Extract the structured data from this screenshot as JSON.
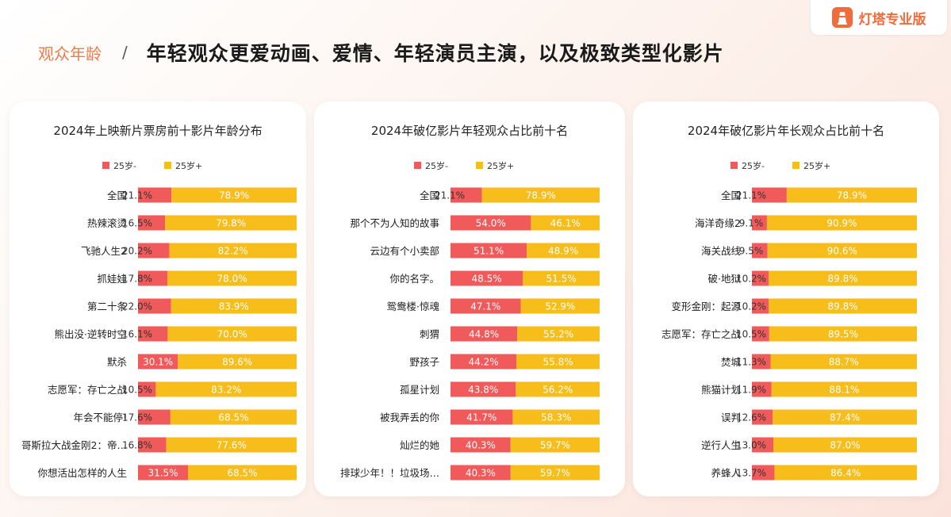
{
  "logo": {
    "text": "灯塔专业版",
    "icon": "lighthouse-icon"
  },
  "header": {
    "section": "观众年龄",
    "separator": "/",
    "headline": "年轻观众更爱动画、爱情、年轻演员主演，以及极致类型化影片"
  },
  "colors": {
    "young": "#f15a5a",
    "old": "#f6bd1b",
    "accent": "#f26b3a"
  },
  "chart_data": [
    {
      "type": "bar",
      "stacked": true,
      "horizontal": true,
      "title": "2024年上映新片票房前十影片年龄分布",
      "legend": {
        "position": "top",
        "items": [
          "25岁-",
          "25岁+"
        ]
      },
      "categories": [
        "全国",
        "热辣滚烫",
        "飞驰人生2",
        "抓娃娃",
        "第二十条",
        "熊出没·逆转时空",
        "默杀",
        "志愿军：存亡之战",
        "年会不能停!",
        "哥斯拉大战金刚2：帝…",
        "你想活出怎样的人生"
      ],
      "series": [
        {
          "name": "25岁-",
          "values": [
            21.1,
            16.5,
            20.2,
            17.8,
            22.0,
            16.1,
            30.1,
            10.5,
            17.6,
            16.8,
            31.5
          ],
          "labels": [
            "21.1%",
            "16.5%",
            "20.2%",
            "17.8%",
            "22.0%",
            "16.1%",
            "30.1%",
            "10.5%",
            "17.6%",
            "16.8%",
            "31.5%"
          ]
        },
        {
          "name": "25岁+",
          "values": [
            78.9,
            79.8,
            82.2,
            78.0,
            83.9,
            70.0,
            89.6,
            83.2,
            68.5,
            77.6,
            68.5
          ],
          "labels": [
            "78.9%",
            "79.8%",
            "82.2%",
            "78.0%",
            "83.9%",
            "70.0%",
            "89.6%",
            "83.2%",
            "68.5%",
            "77.6%",
            "68.5%"
          ]
        }
      ]
    },
    {
      "type": "bar",
      "stacked": true,
      "horizontal": true,
      "title": "2024年破亿影片年轻观众占比前十名",
      "legend": {
        "position": "top",
        "items": [
          "25岁-",
          "25岁+"
        ]
      },
      "categories": [
        "全国",
        "那个不为人知的故事",
        "云边有个小卖部",
        "你的名字。",
        "鸳鸯楼·惊魂",
        "刺猬",
        "野孩子",
        "孤星计划",
        "被我弄丢的你",
        "灿烂的她",
        "排球少年！！垃圾场…"
      ],
      "series": [
        {
          "name": "25岁-",
          "values": [
            21.1,
            54.0,
            51.1,
            48.5,
            47.1,
            44.8,
            44.2,
            43.8,
            41.7,
            40.3,
            40.3
          ],
          "labels": [
            "21.1%",
            "54.0%",
            "51.1%",
            "48.5%",
            "47.1%",
            "44.8%",
            "44.2%",
            "43.8%",
            "41.7%",
            "40.3%",
            "40.3%"
          ]
        },
        {
          "name": "25岁+",
          "values": [
            78.9,
            46.1,
            48.9,
            51.5,
            52.9,
            55.2,
            55.8,
            56.2,
            58.3,
            59.7,
            59.7
          ],
          "labels": [
            "78.9%",
            "46.1%",
            "48.9%",
            "51.5%",
            "52.9%",
            "55.2%",
            "55.8%",
            "56.2%",
            "58.3%",
            "59.7%",
            "59.7%"
          ]
        }
      ]
    },
    {
      "type": "bar",
      "stacked": true,
      "horizontal": true,
      "title": "2024年破亿影片年长观众占比前十名",
      "legend": {
        "position": "top",
        "items": [
          "25岁-",
          "25岁+"
        ]
      },
      "categories": [
        "全国",
        "海洋奇缘2",
        "海关战线",
        "破·地狱",
        "变形金刚：起源",
        "志愿军：存亡之战",
        "焚城",
        "熊猫计划",
        "误判",
        "逆行人生",
        "养蜂人"
      ],
      "series": [
        {
          "name": "25岁-",
          "values": [
            21.1,
            9.1,
            9.5,
            10.2,
            10.2,
            10.5,
            11.3,
            11.9,
            12.6,
            13.0,
            13.7
          ],
          "labels": [
            "21.1%",
            "9.1%",
            "9.5%",
            "10.2%",
            "10.2%",
            "10.5%",
            "11.3%",
            "11.9%",
            "12.6%",
            "13.0%",
            "13.7%"
          ]
        },
        {
          "name": "25岁+",
          "values": [
            78.9,
            90.9,
            90.6,
            89.8,
            89.8,
            89.5,
            88.7,
            88.1,
            87.4,
            87.0,
            86.4
          ],
          "labels": [
            "78.9%",
            "90.9%",
            "90.6%",
            "89.8%",
            "89.8%",
            "89.5%",
            "88.7%",
            "88.1%",
            "87.4%",
            "87.0%",
            "86.4%"
          ]
        }
      ]
    }
  ]
}
